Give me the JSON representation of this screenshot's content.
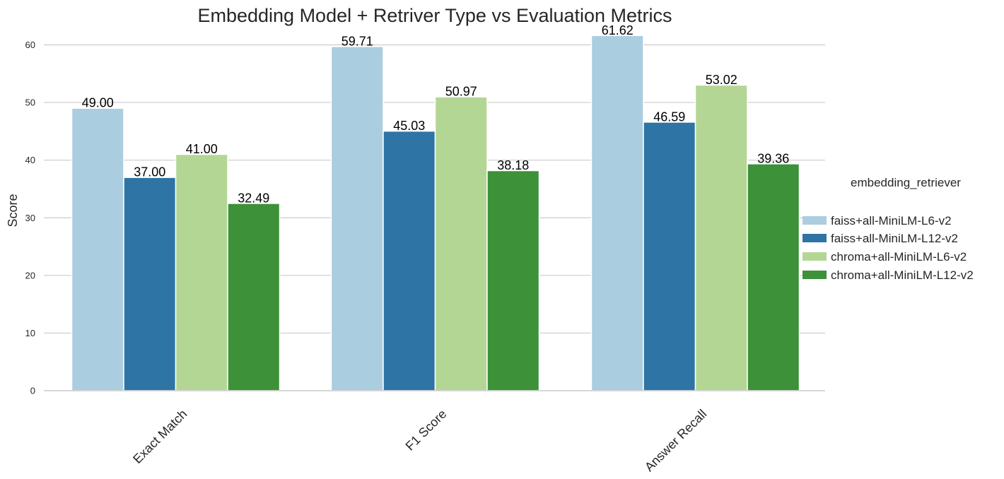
{
  "chart_data": {
    "type": "bar",
    "title": "Embedding Model + Retriver Type vs Evaluation Metrics",
    "xlabel": "",
    "ylabel": "Score",
    "categories": [
      "Exact Match",
      "F1 Score",
      "Answer Recall"
    ],
    "ylim": [
      0,
      63
    ],
    "yticks": [
      0,
      10,
      20,
      30,
      40,
      50,
      60
    ],
    "grid": true,
    "legend": {
      "title": "embedding_retriever",
      "placement": "center-right outside"
    },
    "series": [
      {
        "name": "faiss+all-MiniLM-L6-v2",
        "color": "#abcde0",
        "values": [
          49.0,
          59.71,
          61.62
        ],
        "labels": [
          "49.00",
          "59.71",
          "61.62"
        ]
      },
      {
        "name": "faiss+all-MiniLM-L12-v2",
        "color": "#2e74a5",
        "values": [
          37.0,
          45.03,
          46.59
        ],
        "labels": [
          "37.00",
          "45.03",
          "46.59"
        ]
      },
      {
        "name": "chroma+all-MiniLM-L6-v2",
        "color": "#b4d694",
        "values": [
          41.0,
          50.97,
          53.02
        ],
        "labels": [
          "41.00",
          "50.97",
          "53.02"
        ]
      },
      {
        "name": "chroma+all-MiniLM-L12-v2",
        "color": "#3d9139",
        "values": [
          32.49,
          38.18,
          39.36
        ],
        "labels": [
          "32.49",
          "38.18",
          "39.36"
        ]
      }
    ]
  }
}
